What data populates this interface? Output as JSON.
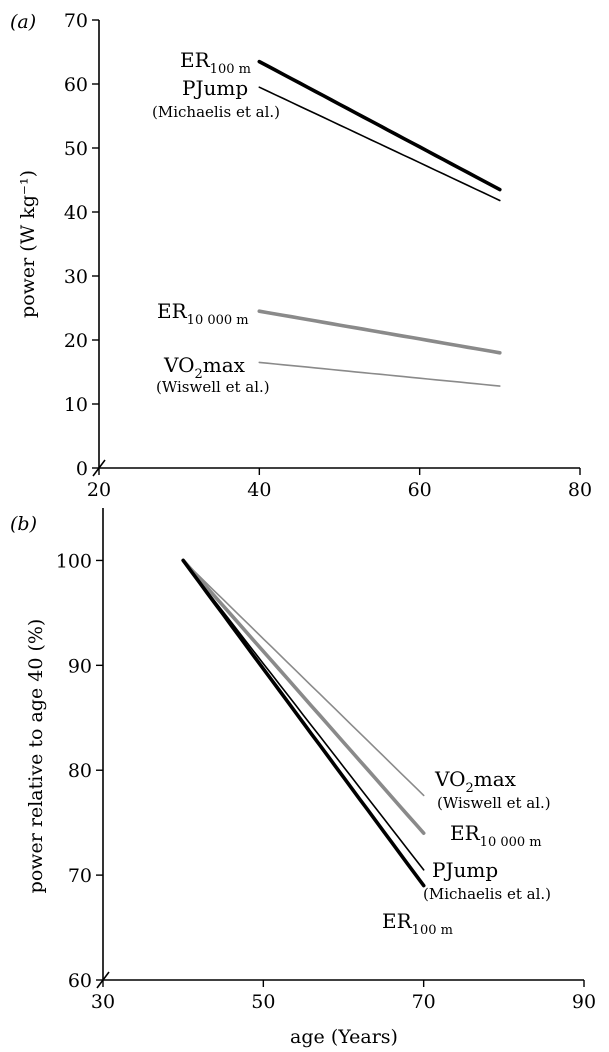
{
  "chart_data": [
    {
      "type": "line",
      "panel_label": "(a)",
      "xlabel": "",
      "ylabel": "power (W kg⁻¹)",
      "xlim": [
        20,
        80
      ],
      "ylim": [
        0,
        70
      ],
      "xticks": [
        20,
        40,
        60,
        80
      ],
      "yticks": [
        0,
        10,
        20,
        30,
        40,
        50,
        60,
        70
      ],
      "axis_break": true,
      "grid": false,
      "series": [
        {
          "label_main": "ER",
          "label_sub": "100 m",
          "label_cite": "",
          "color": "#000000",
          "width": 3.6,
          "x": [
            40,
            70
          ],
          "y": [
            63.5,
            43.5
          ]
        },
        {
          "label_main": "PJump",
          "label_sub": "",
          "label_cite": "(Michaelis et al.)",
          "color": "#000000",
          "width": 1.6,
          "x": [
            40,
            70
          ],
          "y": [
            59.5,
            41.8
          ]
        },
        {
          "label_main": "ER",
          "label_sub": "10 000 m",
          "label_cite": "",
          "color": "#8a8a8a",
          "width": 3.6,
          "x": [
            40,
            70
          ],
          "y": [
            24.5,
            18.0
          ]
        },
        {
          "label_main": "VO",
          "label_sub": "2",
          "label_main2": "max",
          "label_cite": "(Wiswell et al.)",
          "color": "#8a8a8a",
          "width": 1.6,
          "x": [
            40,
            70
          ],
          "y": [
            16.5,
            12.8
          ]
        }
      ]
    },
    {
      "type": "line",
      "panel_label": "(b)",
      "xlabel": "age (Years)",
      "ylabel": "power relative to age 40 (%)",
      "xlim": [
        30,
        90
      ],
      "ylim": [
        60,
        105
      ],
      "xticks": [
        30,
        50,
        70,
        90
      ],
      "yticks": [
        60,
        70,
        80,
        90,
        100
      ],
      "axis_break": true,
      "grid": false,
      "series": [
        {
          "label_main": "VO",
          "label_sub": "2",
          "label_main2": "max",
          "label_cite": "(Wiswell et al.)",
          "color": "#8a8a8a",
          "width": 1.6,
          "x": [
            40,
            70
          ],
          "y": [
            100,
            77.6
          ]
        },
        {
          "label_main": "ER",
          "label_sub": "10 000 m",
          "label_cite": "",
          "color": "#8a8a8a",
          "width": 3.6,
          "x": [
            40,
            70
          ],
          "y": [
            100,
            74.0
          ]
        },
        {
          "label_main": "PJump",
          "label_sub": "",
          "label_cite": "(Michaelis et al.)",
          "color": "#000000",
          "width": 1.6,
          "x": [
            40,
            70
          ],
          "y": [
            100,
            70.5
          ]
        },
        {
          "label_main": "ER",
          "label_sub": "100 m",
          "label_cite": "",
          "color": "#000000",
          "width": 3.6,
          "x": [
            40,
            70
          ],
          "y": [
            100,
            69.0
          ]
        }
      ]
    }
  ]
}
